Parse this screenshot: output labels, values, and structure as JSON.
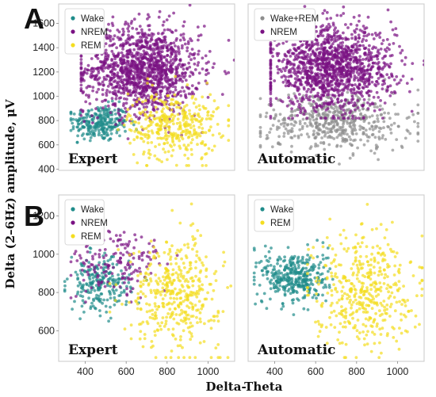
{
  "figure": {
    "panel_letters": [
      "A",
      "B"
    ],
    "ylabel": "Delta (2–6Hz) amplitude, μV",
    "xlabel": "Delta-Theta"
  },
  "colors": {
    "Wake": "#1f8c8a",
    "NREM": "#7a1283",
    "REM": "#f4dd20",
    "Wake+REM": "#8e8e8e"
  },
  "chart_data": [
    {
      "id": "A-expert",
      "type": "scatter",
      "row": "A",
      "corner_label": "Expert",
      "xlim": [
        270,
        1130
      ],
      "ylim": [
        390,
        1760
      ],
      "yticks": [
        400,
        600,
        800,
        1000,
        1200,
        1400,
        1600
      ],
      "legend": [
        "Wake",
        "NREM",
        "REM"
      ],
      "series": [
        {
          "name": "Wake",
          "color": "#1f8c8a",
          "n": 260,
          "cx": 470,
          "cy": 780,
          "sx": 70,
          "sy": 75,
          "xr": [
            330,
            650
          ],
          "yr": [
            620,
            1000
          ]
        },
        {
          "name": "NREM",
          "color": "#7a1283",
          "n": 1300,
          "cx": 680,
          "cy": 1220,
          "sx": 140,
          "sy": 180,
          "xr": [
            380,
            1130
          ],
          "yr": [
            650,
            1750
          ]
        },
        {
          "name": "REM",
          "color": "#f4dd20",
          "n": 380,
          "cx": 830,
          "cy": 760,
          "sx": 110,
          "sy": 140,
          "xr": [
            560,
            1100
          ],
          "yr": [
            430,
            1300
          ]
        }
      ]
    },
    {
      "id": "A-automatic",
      "type": "scatter",
      "row": "A",
      "corner_label": "Automatic",
      "xlim": [
        270,
        1130
      ],
      "ylim": [
        390,
        1760
      ],
      "legend": [
        "Wake+REM",
        "NREM"
      ],
      "series": [
        {
          "name": "Wake+REM",
          "color": "#8e8e8e",
          "n": 520,
          "cx": 700,
          "cy": 790,
          "sx": 180,
          "sy": 120,
          "xr": [
            330,
            1100
          ],
          "yr": [
            430,
            1150
          ]
        },
        {
          "name": "NREM",
          "color": "#7a1283",
          "n": 1350,
          "cx": 680,
          "cy": 1230,
          "sx": 150,
          "sy": 170,
          "xr": [
            380,
            1130
          ],
          "yr": [
            820,
            1750
          ]
        }
      ]
    },
    {
      "id": "B-expert",
      "type": "scatter",
      "row": "B",
      "corner_label": "Expert",
      "xlim": [
        270,
        1130
      ],
      "ylim": [
        440,
        1310
      ],
      "yticks": [
        600,
        800,
        1000,
        1200
      ],
      "xticks": [
        400,
        600,
        800,
        1000
      ],
      "legend": [
        "Wake",
        "NREM",
        "REM"
      ],
      "series": [
        {
          "name": "Wake",
          "color": "#1f8c8a",
          "n": 230,
          "cx": 470,
          "cy": 840,
          "sx": 75,
          "sy": 70,
          "xr": [
            300,
            700
          ],
          "yr": [
            650,
            1050
          ]
        },
        {
          "name": "NREM",
          "color": "#7a1283",
          "n": 160,
          "cx": 560,
          "cy": 950,
          "sx": 120,
          "sy": 90,
          "xr": [
            330,
            1000
          ],
          "yr": [
            750,
            1300
          ]
        },
        {
          "name": "REM",
          "color": "#f4dd20",
          "n": 420,
          "cx": 840,
          "cy": 800,
          "sx": 110,
          "sy": 140,
          "xr": [
            520,
            1120
          ],
          "yr": [
            460,
            1300
          ]
        }
      ]
    },
    {
      "id": "B-automatic",
      "type": "scatter",
      "row": "B",
      "corner_label": "Automatic",
      "xlim": [
        270,
        1130
      ],
      "ylim": [
        440,
        1310
      ],
      "xticks": [
        400,
        600,
        800,
        1000
      ],
      "legend": [
        "Wake",
        "REM"
      ],
      "series": [
        {
          "name": "Wake",
          "color": "#1f8c8a",
          "n": 360,
          "cx": 500,
          "cy": 880,
          "sx": 80,
          "sy": 70,
          "xr": [
            300,
            760
          ],
          "yr": [
            680,
            1080
          ]
        },
        {
          "name": "REM",
          "color": "#f4dd20",
          "n": 440,
          "cx": 830,
          "cy": 820,
          "sx": 120,
          "sy": 150,
          "xr": [
            560,
            1120
          ],
          "yr": [
            460,
            1300
          ]
        }
      ]
    }
  ]
}
